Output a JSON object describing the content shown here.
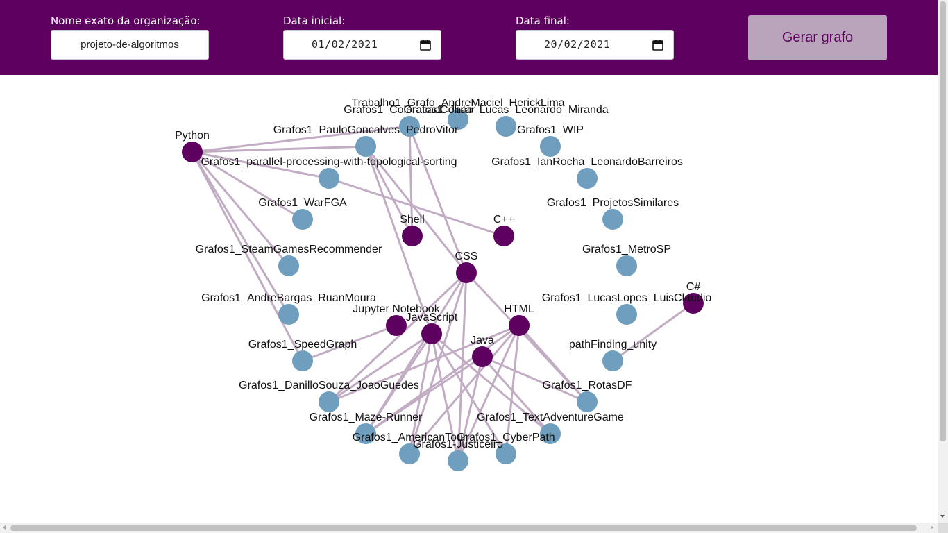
{
  "form": {
    "org_label": "Nome exato da organização:",
    "org_value": "projeto-de-algoritmos",
    "start_label": "Data inicial:",
    "start_value": "01/02/2021",
    "end_label": "Data final:",
    "end_value": "20/02/2021",
    "submit_label": "Gerar grafo"
  },
  "colors": {
    "header": "#5e0060",
    "language_node": "#5e0060",
    "repo_node": "#6f9ebf",
    "edge": "#c1acc4",
    "button": "#b9a4bb"
  },
  "graph": {
    "nodes": [
      {
        "id": "python",
        "label": "Python",
        "type": "language"
      },
      {
        "id": "shell",
        "label": "Shell",
        "type": "language"
      },
      {
        "id": "cpp",
        "label": "C++",
        "type": "language"
      },
      {
        "id": "css",
        "label": "CSS",
        "type": "language"
      },
      {
        "id": "csharp",
        "label": "C#",
        "type": "language"
      },
      {
        "id": "jupyter",
        "label": "Jupyter Notebook",
        "type": "language"
      },
      {
        "id": "js",
        "label": "JavaScript",
        "type": "language"
      },
      {
        "id": "html",
        "label": "HTML",
        "type": "language"
      },
      {
        "id": "java",
        "label": "Java",
        "type": "language"
      },
      {
        "id": "r_trab",
        "label": "Trabalho1_Grafo_AndreMaciel_HerickLima",
        "type": "repo"
      },
      {
        "id": "r_color",
        "label": "Grafos1_ColoracaoCelular",
        "type": "repo"
      },
      {
        "id": "r_joao",
        "label": "Grafos1_Joao_Lucas_Leonardo_Miranda",
        "type": "repo"
      },
      {
        "id": "r_paulo",
        "label": "Grafos1_PauloGoncalves_PedroVitor",
        "type": "repo"
      },
      {
        "id": "r_wip",
        "label": "Grafos1_WIP",
        "type": "repo"
      },
      {
        "id": "r_parallel",
        "label": "Grafos1_parallel-processing-with-topological-sorting",
        "type": "repo"
      },
      {
        "id": "r_ian",
        "label": "Grafos1_IanRocha_LeonardoBarreiros",
        "type": "repo"
      },
      {
        "id": "r_warfga",
        "label": "Grafos1_WarFGA",
        "type": "repo"
      },
      {
        "id": "r_proj",
        "label": "Grafos1_ProjetosSimilares",
        "type": "repo"
      },
      {
        "id": "r_steam",
        "label": "Grafos1_SteamGamesRecommender",
        "type": "repo"
      },
      {
        "id": "r_metro",
        "label": "Grafos1_MetroSP",
        "type": "repo"
      },
      {
        "id": "r_andre",
        "label": "Grafos1_AndreBargas_RuanMoura",
        "type": "repo"
      },
      {
        "id": "r_lucas",
        "label": "Grafos1_LucasLopes_LuisClaudio",
        "type": "repo"
      },
      {
        "id": "r_speed",
        "label": "Grafos1_SpeedGraph",
        "type": "repo"
      },
      {
        "id": "r_path",
        "label": "pathFinding_unity",
        "type": "repo"
      },
      {
        "id": "r_danillo",
        "label": "Grafos1_DanilloSouza_JoaoGuedes",
        "type": "repo"
      },
      {
        "id": "r_rotas",
        "label": "Grafos1_RotasDF",
        "type": "repo"
      },
      {
        "id": "r_maze",
        "label": "Grafos1_Maze-Runner",
        "type": "repo"
      },
      {
        "id": "r_text",
        "label": "Grafos1_TextAdventureGame",
        "type": "repo"
      },
      {
        "id": "r_american",
        "label": "Grafos1_AmericanTour",
        "type": "repo"
      },
      {
        "id": "r_cyber",
        "label": "Grafos1_CyberPath",
        "type": "repo"
      },
      {
        "id": "r_just",
        "label": "Grafos1-Justiceiro",
        "type": "repo"
      }
    ],
    "edges": [
      [
        "python",
        "r_color"
      ],
      [
        "python",
        "r_paulo"
      ],
      [
        "python",
        "r_parallel"
      ],
      [
        "python",
        "r_warfga"
      ],
      [
        "python",
        "r_steam"
      ],
      [
        "python",
        "r_andre"
      ],
      [
        "python",
        "r_speed"
      ],
      [
        "r_color",
        "shell"
      ],
      [
        "r_paulo",
        "shell"
      ],
      [
        "r_paulo",
        "css"
      ],
      [
        "r_paulo",
        "js"
      ],
      [
        "r_color",
        "css"
      ],
      [
        "r_parallel",
        "cpp"
      ],
      [
        "jupyter",
        "r_speed"
      ],
      [
        "css",
        "r_danillo"
      ],
      [
        "css",
        "r_maze"
      ],
      [
        "css",
        "r_american"
      ],
      [
        "css",
        "r_just"
      ],
      [
        "css",
        "r_rotas"
      ],
      [
        "js",
        "r_danillo"
      ],
      [
        "js",
        "r_maze"
      ],
      [
        "js",
        "r_american"
      ],
      [
        "js",
        "r_just"
      ],
      [
        "js",
        "r_cyber"
      ],
      [
        "js",
        "r_text"
      ],
      [
        "html",
        "r_danillo"
      ],
      [
        "html",
        "r_maze"
      ],
      [
        "html",
        "r_american"
      ],
      [
        "html",
        "r_just"
      ],
      [
        "html",
        "r_cyber"
      ],
      [
        "html",
        "r_rotas"
      ],
      [
        "java",
        "r_maze"
      ],
      [
        "java",
        "r_just"
      ],
      [
        "java",
        "r_text"
      ],
      [
        "java",
        "r_rotas"
      ],
      [
        "csharp",
        "r_path"
      ]
    ]
  }
}
